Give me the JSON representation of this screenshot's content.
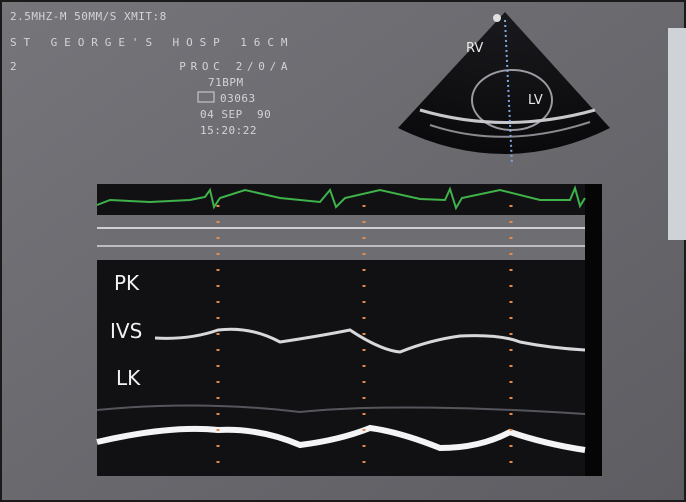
{
  "screen_header": {
    "lines": [
      "2.5MHZ-M  50MM/S XMIT:8",
      "ST GEORGE'S HOSP     16CM",
      "2              PROC 2/0/A",
      "71BPM",
      "03063",
      "04 SEP  90",
      "15:20:22"
    ]
  },
  "sector_image": {
    "labels": [
      "RV",
      "LV"
    ]
  },
  "m_mode": {
    "labels": [
      "PK",
      "IVS",
      "LK"
    ]
  }
}
